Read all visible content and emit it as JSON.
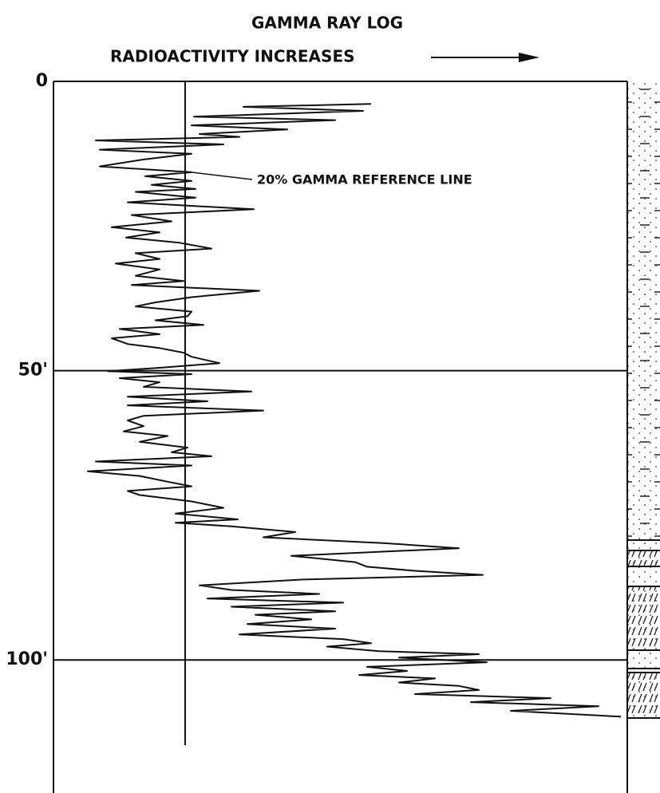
{
  "chart_data": {
    "type": "line",
    "title": "GAMMA RAY LOG",
    "subtitle": "RADIOACTIVITY INCREASES",
    "annotation": "20% GAMMA REFERENCE LINE",
    "x": [
      3.9,
      4.4,
      5.1,
      6.1,
      6.7,
      7.6,
      8.3,
      9.1,
      9.6,
      10.2,
      10.9,
      11.8,
      12.5,
      13.5,
      14.7,
      15.7,
      16.4,
      17.2,
      17.9,
      18.6,
      19.1,
      20.1,
      20.9,
      22.1,
      23.1,
      24.2,
      25.2,
      26.1,
      27.0,
      27.9,
      28.9,
      29.7,
      30.7,
      31.5,
      32.5,
      33.6,
      34.5,
      35.2,
      36.2,
      37.3,
      38.2,
      38.9,
      39.8,
      40.6,
      41.3,
      42.1,
      42.8,
      43.7,
      44.4,
      45.4,
      46.1,
      46.9,
      47.6,
      48.7,
      49.5,
      50.1,
      50.6,
      51.3,
      52.0,
      52.8,
      53.6,
      54.5,
      55.3,
      56.0,
      56.9,
      57.8,
      58.6,
      59.6,
      60.5,
      61.3,
      62.3,
      63.3,
      64.1,
      64.8,
      65.7,
      66.4,
      67.4,
      68.2,
      69.2,
      70.0,
      70.8,
      71.5,
      72.6,
      73.7,
      74.7,
      75.7,
      76.3,
      76.9,
      77.9,
      78.8,
      79.8,
      80.7,
      82.0,
      83.1,
      83.9,
      84.6,
      85.3,
      86.1,
      87.1,
      87.9,
      88.6,
      89.4,
      90.1,
      90.8,
      91.6,
      92.2,
      93.0,
      93.8,
      94.6,
      95.6,
      96.4,
      97.1,
      97.7,
      98.5,
      99.0,
      99.6,
      100.4,
      101.2,
      101.9,
      102.6,
      103.2,
      103.9,
      104.5,
      105.2,
      105.9,
      106.6,
      107.3,
      108.0,
      108.8,
      109.8
    ],
    "values": [
      398,
      238,
      388,
      176,
      353,
      173,
      293,
      183,
      233,
      53,
      213,
      58,
      173,
      113,
      58,
      173,
      115,
      173,
      123,
      178,
      103,
      178,
      93,
      251,
      98,
      148,
      73,
      133,
      91,
      158,
      198,
      103,
      133,
      78,
      133,
      103,
      163,
      98,
      258,
      173,
      128,
      103,
      173,
      168,
      128,
      188,
      83,
      133,
      73,
      93,
      133,
      163,
      173,
      208,
      133,
      68,
      173,
      83,
      133,
      113,
      248,
      93,
      193,
      93,
      263,
      113,
      93,
      113,
      88,
      143,
      108,
      168,
      148,
      198,
      53,
      173,
      43,
      108,
      143,
      173,
      93,
      108,
      173,
      213,
      153,
      231,
      153,
      223,
      303,
      263,
      413,
      508,
      298,
      378,
      393,
      453,
      538,
      313,
      183,
      223,
      333,
      193,
      363,
      223,
      353,
      253,
      323,
      243,
      353,
      233,
      363,
      398,
      343,
      408,
      533,
      433,
      543,
      393,
      443,
      383,
      478,
      433,
      508,
      533,
      453,
      623,
      523,
      683,
      573,
      711
    ],
    "color": "#111111",
    "xlim": [
      0,
      123
    ],
    "xticks": [
      0,
      {
        "value": 50,
        "label": "50'"
      },
      {
        "value": 100,
        "label": "100'"
      }
    ],
    "ylim": [
      0,
      718
    ],
    "reference_line": 165,
    "grid": true
  }
}
